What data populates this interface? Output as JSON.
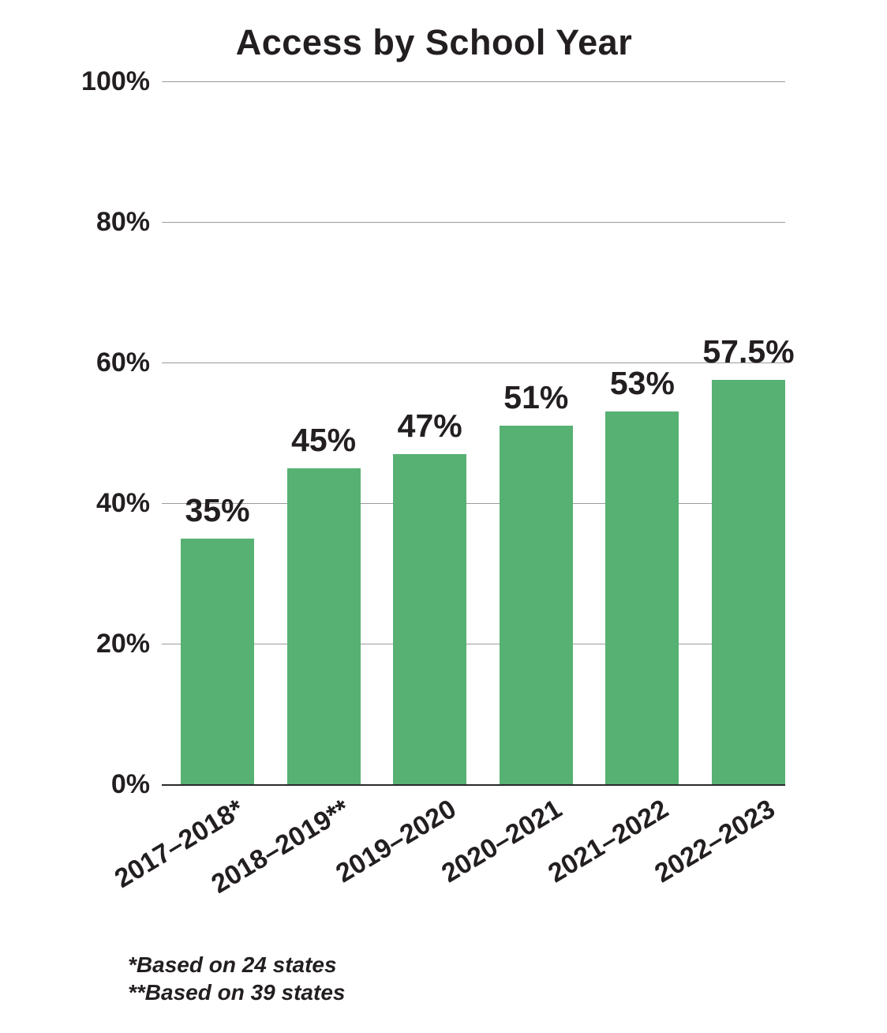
{
  "page": {
    "background": "#ffffff"
  },
  "chart_data": {
    "type": "bar",
    "title": "Access by School Year",
    "categories": [
      "2017–2018*",
      "2018–2019**",
      "2019–2020",
      "2020–2021",
      "2021–2022",
      "2022–2023"
    ],
    "values": [
      35,
      45,
      47,
      51,
      53,
      57.5
    ],
    "value_labels": [
      "35%",
      "45%",
      "47%",
      "51%",
      "53%",
      "57.5%"
    ],
    "yticks": [
      0,
      20,
      40,
      60,
      80,
      100
    ],
    "ytick_labels": [
      "0%",
      "20%",
      "40%",
      "60%",
      "80%",
      "100%"
    ],
    "ylim": [
      0,
      100
    ],
    "xlabel": "",
    "ylabel": "",
    "grid": true,
    "legend": "none",
    "x_tick_rotation_deg": -31,
    "bar_color": "#57b173",
    "text_color": "#231f20",
    "gridline_color": "#9b9b9b",
    "baseline_color": "#2a2a2a",
    "footnotes": [
      "*Based on 24 states",
      "**Based on 39 states"
    ]
  }
}
